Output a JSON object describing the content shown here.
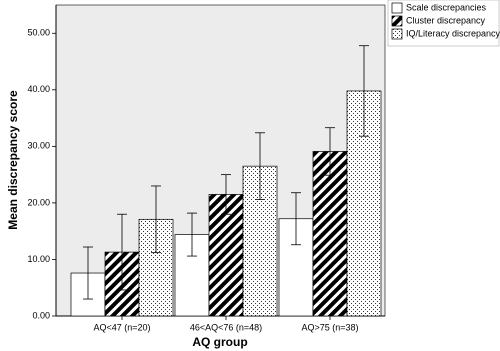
{
  "chart_data": {
    "type": "bar",
    "x_label": "AQ group",
    "y_label": "Mean discrepancy score",
    "categories": [
      "AQ<47 (n=20)",
      "46<AQ<76 (n=48)",
      "AQ>75 (n=38)"
    ],
    "series": [
      {
        "name": "Scale discrepancies",
        "color": "#ffffff",
        "pattern": "none",
        "values": [
          7.6,
          14.4,
          17.2
        ],
        "errors": [
          4.6,
          3.8,
          4.6
        ]
      },
      {
        "name": "Cluster discrepancy",
        "color": "#000000",
        "pattern": "diagonal",
        "values": [
          11.3,
          21.5,
          29.1
        ],
        "errors": [
          6.7,
          3.5,
          4.2
        ]
      },
      {
        "name": "IQ/Literacy discrepancy",
        "color": "#000000",
        "pattern": "dots",
        "values": [
          17.1,
          26.5,
          39.8
        ],
        "errors": [
          5.9,
          5.9,
          8.0
        ]
      }
    ],
    "ylim": [
      0,
      55
    ],
    "yticks": [
      {
        "value": 0,
        "label": "0.00"
      },
      {
        "value": 10,
        "label": "10.00"
      },
      {
        "value": 20,
        "label": "20.00"
      },
      {
        "value": 30,
        "label": "30.00"
      },
      {
        "value": 40,
        "label": "40.00"
      },
      {
        "value": 50,
        "label": "50.00"
      }
    ],
    "legend": "top-right"
  }
}
